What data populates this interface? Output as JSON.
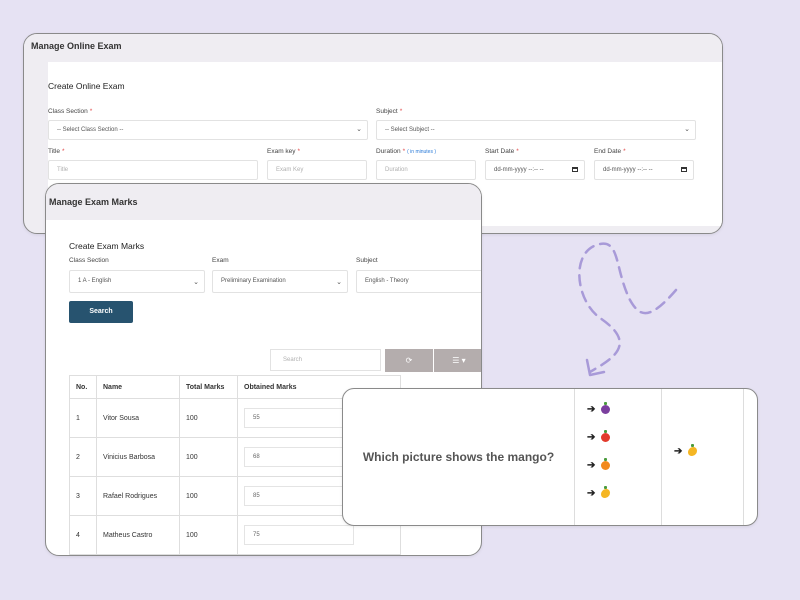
{
  "exam_card": {
    "header": "Manage Online Exam",
    "title": "Create Online Exam",
    "class_section": {
      "label": "Class Section",
      "req": "*",
      "value": "-- Select Class Section --"
    },
    "subject": {
      "label": "Subject",
      "req": "*",
      "value": "-- Select Subject --"
    },
    "title_field": {
      "label": "Title",
      "req": "*",
      "placeholder": "Title"
    },
    "exam_key": {
      "label": "Exam key",
      "req": "*",
      "placeholder": "Exam Key"
    },
    "duration": {
      "label": "Duration",
      "req": "*",
      "hint": "( in minutes )",
      "placeholder": "Duration"
    },
    "start_date": {
      "label": "Start Date",
      "req": "*",
      "placeholder": "dd-mm-yyyy --:-- --"
    },
    "end_date": {
      "label": "End Date",
      "req": "*",
      "placeholder": "dd-mm-yyyy --:-- --"
    }
  },
  "marks_card": {
    "header": "Manage Exam Marks",
    "title": "Create Exam Marks",
    "class_section": {
      "label": "Class Section",
      "value": "1 A - English"
    },
    "exam": {
      "label": "Exam",
      "value": "Preliminary Examination"
    },
    "subject": {
      "label": "Subject",
      "value": "English - Theory"
    },
    "search_button": "Search",
    "search_placeholder": "Search",
    "refresh_icon": "refresh-icon",
    "columns_icon": "list-icon",
    "columns": [
      "No.",
      "Name",
      "Total Marks",
      "Obtained Marks"
    ],
    "rows": [
      {
        "no": "1",
        "name": "Vitor Sousa",
        "total": "100",
        "obtained": "55"
      },
      {
        "no": "2",
        "name": "Vinicius Barbosa",
        "total": "100",
        "obtained": "68"
      },
      {
        "no": "3",
        "name": "Rafael Rodrigues",
        "total": "100",
        "obtained": "85"
      },
      {
        "no": "4",
        "name": "Matheus Castro",
        "total": "100",
        "obtained": "75"
      }
    ]
  },
  "quiz": {
    "question": "Which picture shows the mango?",
    "options": [
      "grape",
      "apple",
      "orange",
      "mango"
    ],
    "answer": "mango"
  },
  "colors": {
    "background": "#e6e2f3",
    "primary_button": "#27536f",
    "toolbar_button": "#b4adad",
    "required": "#e04848",
    "hint": "#2b7bd8",
    "dashed_arrow": "#a89ad8"
  }
}
